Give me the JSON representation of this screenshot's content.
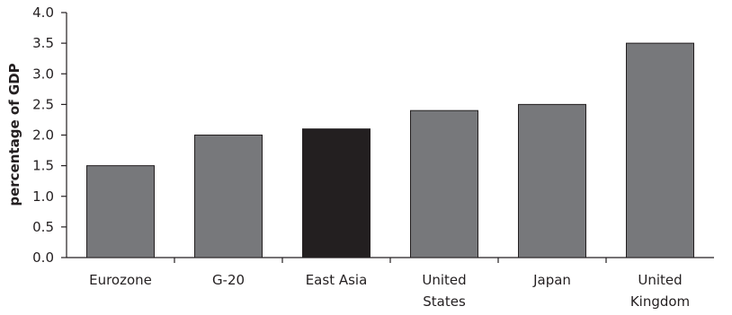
{
  "chart_data": {
    "type": "bar",
    "title": "",
    "xlabel": "",
    "ylabel": "percentage of GDP",
    "ylim": [
      0,
      4.0
    ],
    "yticks": [
      "0.0",
      "0.5",
      "1.0",
      "1.5",
      "2.0",
      "2.5",
      "3.0",
      "3.5",
      "4.0"
    ],
    "grid": false,
    "categories": [
      "Eurozone",
      "G-20",
      "East Asia",
      "United States",
      "Japan",
      "United Kingdom"
    ],
    "category_lines": [
      [
        "Eurozone"
      ],
      [
        "G-20"
      ],
      [
        "East Asia"
      ],
      [
        "United",
        "States"
      ],
      [
        "Japan"
      ],
      [
        "United",
        "Kingdom"
      ]
    ],
    "values": [
      1.5,
      2.0,
      2.1,
      2.4,
      2.5,
      3.5
    ],
    "highlight": "East Asia",
    "colors": {
      "bar": "#77787b",
      "highlight": "#231f20",
      "outline": "#231f20",
      "axis": "#231f20"
    }
  }
}
